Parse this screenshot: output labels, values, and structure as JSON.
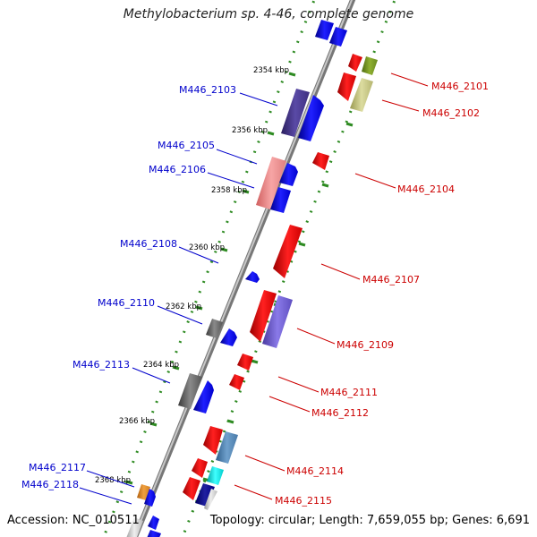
{
  "title": "Methylobacterium sp. 4-46, complete genome",
  "footer": {
    "accession": "Accession: NC_010511",
    "topology": "Topology: circular; Length: 7,659,055 bp; Genes: 6,691"
  },
  "ticks": [
    "2354 kbp",
    "2356 kbp",
    "2358 kbp",
    "2360 kbp",
    "2362 kbp",
    "2364 kbp",
    "2366 kbp",
    "2368 kbp"
  ],
  "genes_left": [
    "M446_2103",
    "M446_2105",
    "M446_2106",
    "M446_2108",
    "M446_2110",
    "M446_2113",
    "M446_2117",
    "M446_2118"
  ],
  "genes_right": [
    "M446_2101",
    "M446_2102",
    "M446_2104",
    "M446_2107",
    "M446_2109",
    "M446_2111",
    "M446_2112",
    "M446_2114",
    "M446_2115"
  ],
  "colors": {
    "left_label": "#0000cc",
    "right_label": "#cc0000",
    "backbone": "#999999",
    "tick_dots": "#2e8b22"
  }
}
